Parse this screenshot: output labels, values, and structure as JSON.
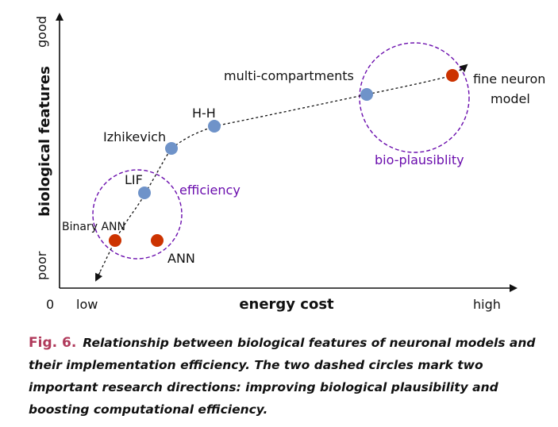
{
  "axes": {
    "y_title": "biological features",
    "y_high": "good",
    "y_low": "poor",
    "x_title": "energy cost",
    "x_low": "low",
    "x_high": "high",
    "origin": "0"
  },
  "models": [
    {
      "label": "Binary ANN",
      "color": "#cc3300"
    },
    {
      "label": "ANN",
      "color": "#cc3300"
    },
    {
      "label": "LIF",
      "color": "#6f93c9"
    },
    {
      "label": "Izhikevich",
      "color": "#6f93c9"
    },
    {
      "label": "H-H",
      "color": "#6f93c9"
    },
    {
      "label": "multi-compartments",
      "color": "#6f93c9"
    },
    {
      "label": "fine neuron",
      "label_line2": "model",
      "color": "#cc3300"
    }
  ],
  "regions": {
    "efficiency": "efficiency",
    "bio": "bio-plausiblity",
    "color": "#6a0dad"
  },
  "caption": {
    "label": "Fig. 6.",
    "text": "Relationship between biological features of neuronal models and their implementation efficiency. The two dashed circles mark two important research directions: improving biological plausibility and boosting computational efficiency."
  }
}
